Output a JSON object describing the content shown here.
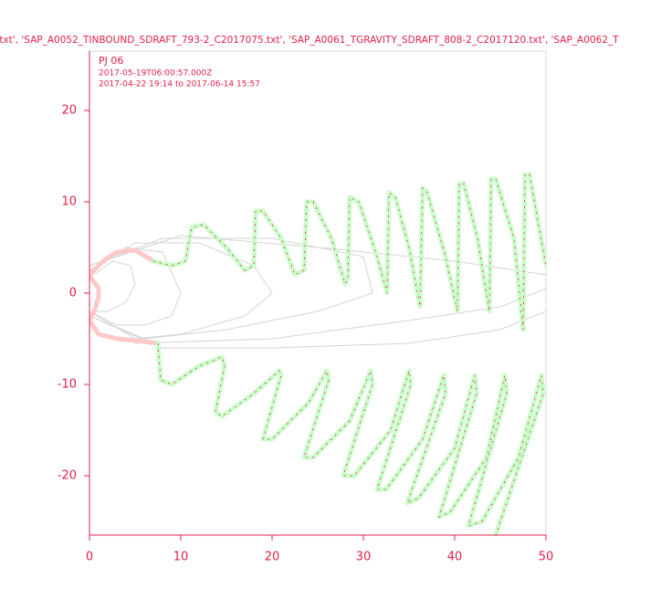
{
  "chart_data": {
    "type": "line",
    "title": ".txt', 'SAP_A0052_TINBOUND_SDRAFT_793-2_C2017075.txt', 'SAP_A0061_TGRAVITY_SDRAFT_808-2_C2017120.txt', 'SAP_A0062_T",
    "annotations": [
      "PJ 06",
      "2017-05-19T06:00:57.000Z",
      "2017-04-22 19:14 to 2017-06-14 15:57"
    ],
    "xlim": [
      0,
      50
    ],
    "ylim": [
      -26.5,
      26.5
    ],
    "xticks": [
      0,
      10,
      20,
      30,
      40,
      50
    ],
    "yticks": [
      -20,
      -10,
      0,
      10,
      20
    ],
    "text_color": "#e0204a",
    "series": [
      {
        "color": "#d4d4d4",
        "width": 1,
        "x": [
          0.5,
          2.5,
          4.5,
          5,
          4,
          2,
          0.5
        ],
        "values": [
          2,
          3.5,
          3,
          1,
          -1,
          -2,
          -2
        ]
      },
      {
        "color": "#d4d4d4",
        "width": 1,
        "x": [
          0,
          4,
          8,
          10,
          9,
          6,
          3,
          0
        ],
        "values": [
          2.5,
          5,
          4.5,
          0,
          -2.5,
          -3.5,
          -3.5,
          -2
        ]
      },
      {
        "color": "#d4d4d4",
        "width": 1,
        "x": [
          0,
          5,
          12,
          18,
          20,
          17,
          10,
          5,
          0
        ],
        "values": [
          2.5,
          5.5,
          5.5,
          3,
          0,
          -2.5,
          -4.5,
          -5,
          -2
        ]
      },
      {
        "color": "#d4d4d4",
        "width": 1,
        "x": [
          0,
          8,
          20,
          30,
          31,
          25,
          15,
          6,
          0
        ],
        "values": [
          3,
          6,
          6,
          4,
          0,
          -2,
          -4,
          -5,
          -2.5
        ]
      },
      {
        "color": "#d4d4d4",
        "width": 1,
        "x": [
          0,
          10,
          25,
          40,
          50
        ],
        "values": [
          3,
          6.3,
          5,
          3.5,
          2
        ]
      },
      {
        "color": "#d4d4d4",
        "width": 1,
        "x": [
          0,
          8,
          20,
          35,
          45,
          50
        ],
        "values": [
          -2.5,
          -6,
          -6,
          -5.5,
          -4,
          -2
        ]
      },
      {
        "color": "#d4d4d4",
        "width": 1,
        "x": [
          5,
          20,
          35,
          45,
          50
        ],
        "values": [
          -5.5,
          -5,
          -3,
          -1.5,
          0.5
        ]
      },
      {
        "color": "#ffc8c8",
        "width": 5,
        "x": [
          7,
          5,
          3,
          1.5,
          0,
          0.3,
          1,
          1,
          0.5,
          0,
          1,
          3,
          6,
          7.5
        ],
        "values": [
          3.5,
          4.7,
          4.5,
          3.5,
          2,
          1.5,
          0.5,
          -0.5,
          -2,
          -3,
          -4.5,
          -5,
          -5.3,
          -5.5
        ]
      },
      {
        "color": "#c8ffc8",
        "width": 5,
        "dash_color": "#e0204a",
        "x": [
          7,
          9,
          10.5,
          11.2,
          12.5,
          15,
          17,
          18,
          18.2,
          19,
          21,
          22.5,
          23.5,
          23.8,
          24.5,
          26.5,
          28,
          28.3,
          28.5,
          29.5,
          31.5,
          32.6,
          32.8,
          33.5,
          35,
          36.2,
          36.5,
          37,
          39,
          40.3,
          40.5,
          41,
          42.5,
          43.8,
          44,
          44.5,
          46.5,
          47.5,
          47.7,
          48.2,
          50
        ],
        "values": [
          3.5,
          3,
          3.5,
          7.2,
          7.5,
          5,
          2.5,
          3,
          9,
          9,
          6,
          2,
          2.5,
          10,
          10,
          6,
          1,
          1.5,
          10.5,
          10,
          4,
          0,
          11,
          10.5,
          5,
          -1.5,
          11.5,
          11,
          4,
          -2,
          12,
          12,
          6,
          -2,
          12.5,
          12.5,
          6,
          -4,
          13,
          13,
          3
        ]
      },
      {
        "color": "#c8ffc8",
        "width": 5,
        "dash_color": "#e0204a",
        "x": [
          7.5,
          7.8,
          9,
          12,
          14.5,
          14.8,
          13.8,
          14.5,
          18,
          20.8,
          21,
          19,
          20,
          24,
          26,
          26.2,
          23.5,
          24.5,
          28.5,
          30.8,
          31,
          27.8,
          29,
          33,
          35,
          35.2,
          31.5,
          32.5,
          36.5,
          38.8,
          39,
          34.8,
          36,
          40,
          42.2,
          42.4,
          38.3,
          39.5,
          43.5,
          45.5,
          45.7,
          41.5,
          43,
          47,
          49.5,
          49.7,
          44.5
        ],
        "values": [
          -5.5,
          -9.5,
          -10,
          -8,
          -7,
          -8,
          -13,
          -13.5,
          -11,
          -8.5,
          -9,
          -16,
          -16,
          -12,
          -8.5,
          -9.5,
          -18,
          -18,
          -14,
          -8.5,
          -10,
          -20,
          -20,
          -15,
          -8.5,
          -10,
          -21.5,
          -21.5,
          -16,
          -9,
          -11,
          -23,
          -22.5,
          -17,
          -9,
          -11,
          -24.5,
          -24,
          -18,
          -9,
          -11,
          -25.5,
          -25,
          -18,
          -9,
          -11,
          -26.5
        ]
      }
    ]
  }
}
